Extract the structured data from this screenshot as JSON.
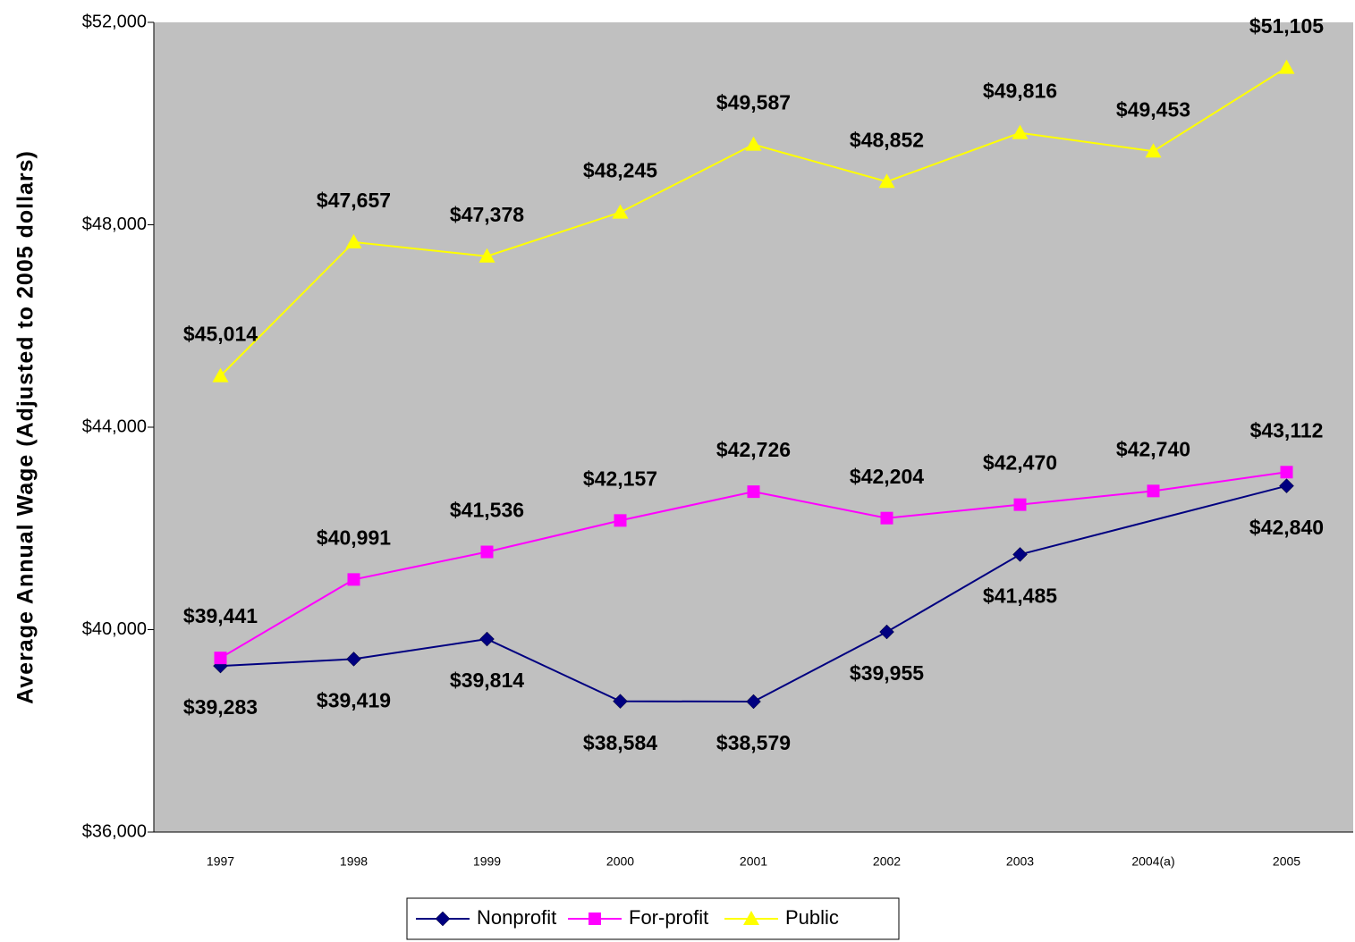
{
  "chart_data": {
    "type": "line",
    "y_label": "Average Annual Wage (Adjusted to 2005 dollars)",
    "categories": [
      "1997",
      "1998",
      "1999",
      "2000",
      "2001",
      "2002",
      "2003",
      "2004(a)",
      "2005"
    ],
    "series": [
      {
        "name": "Nonprofit",
        "color": "#000080",
        "marker": "diamond",
        "label_position": "below",
        "values": [
          39283,
          39419,
          39814,
          38584,
          38579,
          39955,
          41485,
          null,
          42840
        ],
        "value_labels": [
          "$39,283",
          "$39,419",
          "$39,814",
          "$38,584",
          "$38,579",
          "$39,955",
          "$41,485",
          null,
          "$42,840"
        ]
      },
      {
        "name": "For-profit",
        "color": "#ff00ff",
        "marker": "square",
        "label_position": "above",
        "values": [
          39441,
          40991,
          41536,
          42157,
          42726,
          42204,
          42470,
          42740,
          43112
        ],
        "value_labels": [
          "$39,441",
          "$40,991",
          "$41,536",
          "$42,157",
          "$42,726",
          "$42,204",
          "$42,470",
          "$42,740",
          "$43,112"
        ]
      },
      {
        "name": "Public",
        "color": "#ffff00",
        "marker": "triangle",
        "label_position": "above",
        "values": [
          45014,
          47657,
          47378,
          48245,
          49587,
          48852,
          49816,
          49453,
          51105
        ],
        "value_labels": [
          "$45,014",
          "$47,657",
          "$47,378",
          "$48,245",
          "$49,587",
          "$48,852",
          "$49,816",
          "$49,453",
          "$51,105"
        ]
      }
    ],
    "connect_gaps": true,
    "ylim": [
      36000,
      52000
    ],
    "yticks": [
      {
        "value": 36000,
        "label": "$36,000"
      },
      {
        "value": 40000,
        "label": "$40,000"
      },
      {
        "value": 44000,
        "label": "$44,000"
      },
      {
        "value": 48000,
        "label": "$48,000"
      },
      {
        "value": 52000,
        "label": "$52,000"
      }
    ],
    "plot_background": "#c0c0c0",
    "grid": false,
    "legend": "bottom"
  }
}
